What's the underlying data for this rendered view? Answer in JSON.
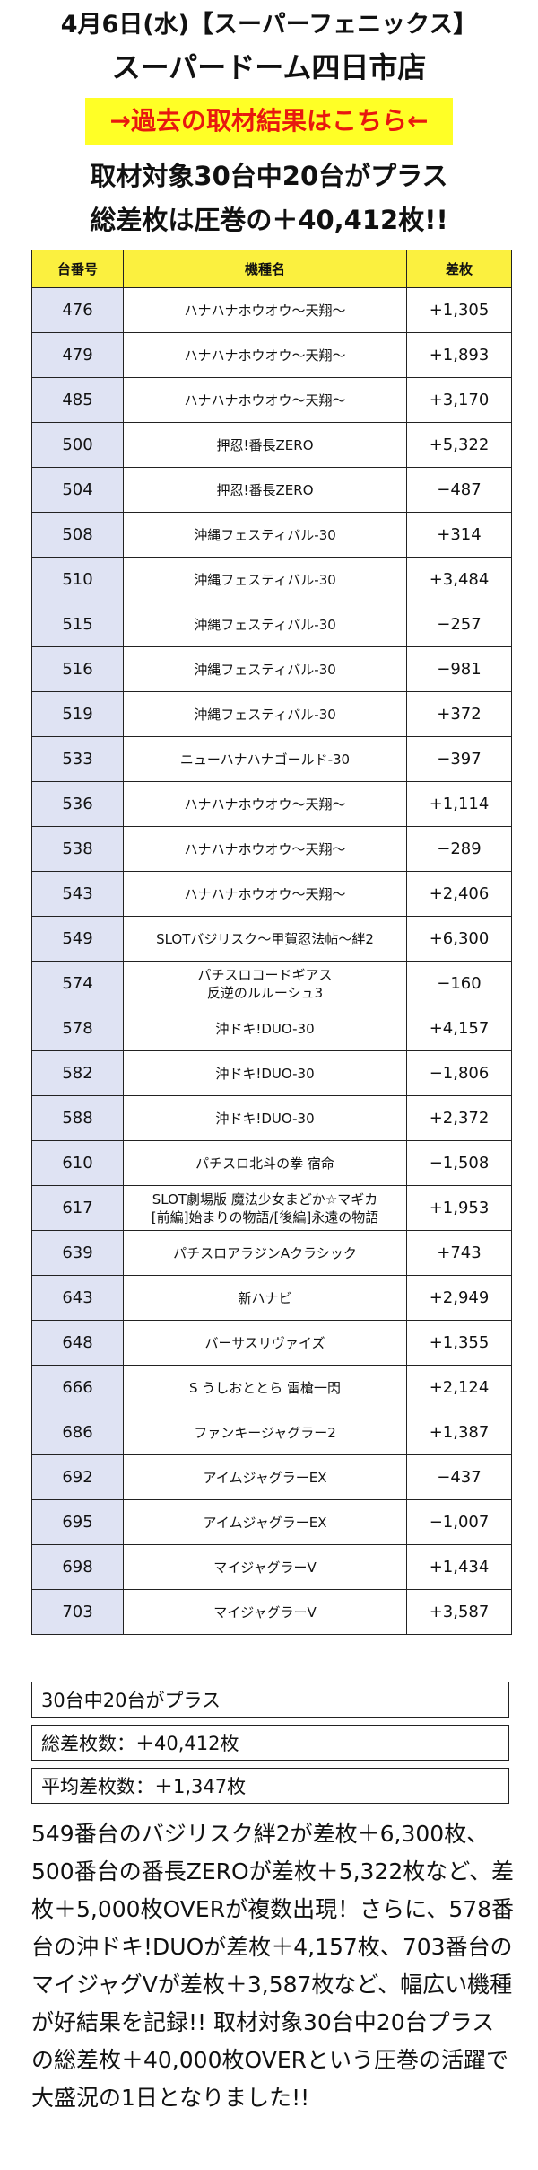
{
  "header": {
    "line1": "4月6日(水)【スーパーフェニックス】",
    "line2": "スーパードーム四日市店",
    "link_label": "→過去の取材結果はこちら←",
    "line3": "取材対象30台中20台がプラス",
    "line4": "総差枚は圧巻の＋40,412枚!!"
  },
  "table": {
    "headers": [
      "台番号",
      "機種名",
      "差枚"
    ],
    "rows": [
      {
        "num": "476",
        "name": "ハナハナホウオウ〜天翔〜",
        "diff": "+1,305"
      },
      {
        "num": "479",
        "name": "ハナハナホウオウ〜天翔〜",
        "diff": "+1,893"
      },
      {
        "num": "485",
        "name": "ハナハナホウオウ〜天翔〜",
        "diff": "+3,170"
      },
      {
        "num": "500",
        "name": "押忍!番長ZERO",
        "diff": "+5,322"
      },
      {
        "num": "504",
        "name": "押忍!番長ZERO",
        "diff": "−487"
      },
      {
        "num": "508",
        "name": "沖縄フェスティバル-30",
        "diff": "+314"
      },
      {
        "num": "510",
        "name": "沖縄フェスティバル-30",
        "diff": "+3,484"
      },
      {
        "num": "515",
        "name": "沖縄フェスティバル-30",
        "diff": "−257"
      },
      {
        "num": "516",
        "name": "沖縄フェスティバル-30",
        "diff": "−981"
      },
      {
        "num": "519",
        "name": "沖縄フェスティバル-30",
        "diff": "+372"
      },
      {
        "num": "533",
        "name": "ニューハナハナゴールド-30",
        "diff": "−397"
      },
      {
        "num": "536",
        "name": "ハナハナホウオウ〜天翔〜",
        "diff": "+1,114"
      },
      {
        "num": "538",
        "name": "ハナハナホウオウ〜天翔〜",
        "diff": "−289"
      },
      {
        "num": "543",
        "name": "ハナハナホウオウ〜天翔〜",
        "diff": "+2,406"
      },
      {
        "num": "549",
        "name": "SLOTバジリスク〜甲賀忍法帖〜絆2",
        "diff": "+6,300"
      },
      {
        "num": "574",
        "name": "パチスロコードギアス\n反逆のルルーシュ3",
        "diff": "−160"
      },
      {
        "num": "578",
        "name": "沖ドキ!DUO-30",
        "diff": "+4,157"
      },
      {
        "num": "582",
        "name": "沖ドキ!DUO-30",
        "diff": "−1,806"
      },
      {
        "num": "588",
        "name": "沖ドキ!DUO-30",
        "diff": "+2,372"
      },
      {
        "num": "610",
        "name": "パチスロ北斗の拳 宿命",
        "diff": "−1,508"
      },
      {
        "num": "617",
        "name": "SLOT劇場版 魔法少女まどか☆マギカ\n[前編]始まりの物語/[後編]永遠の物語",
        "diff": "+1,953"
      },
      {
        "num": "639",
        "name": "パチスロアラジンAクラシック",
        "diff": "+743"
      },
      {
        "num": "643",
        "name": "新ハナビ",
        "diff": "+2,949"
      },
      {
        "num": "648",
        "name": "バーサスリヴァイズ",
        "diff": "+1,355"
      },
      {
        "num": "666",
        "name": "S うしおととら 雷槍一閃",
        "diff": "+2,124"
      },
      {
        "num": "686",
        "name": "ファンキージャグラー2",
        "diff": "+1,387"
      },
      {
        "num": "692",
        "name": "アイムジャグラーEX",
        "diff": "−437"
      },
      {
        "num": "695",
        "name": "アイムジャグラーEX",
        "diff": "−1,007"
      },
      {
        "num": "698",
        "name": "マイジャグラーV",
        "diff": "+1,434"
      },
      {
        "num": "703",
        "name": "マイジャグラーV",
        "diff": "+3,587"
      }
    ]
  },
  "summary": {
    "plus": "30台中20台がプラス",
    "total": "総差枚数：＋40,412枚",
    "average": "平均差枚数：＋1,347枚"
  },
  "body_text": "549番台のバジリスク絆2が差枚＋6,300枚、500番台の番長ZEROが差枚＋5,322枚など、差枚＋5,000枚OVERが複数出現！さらに、578番台の沖ドキ!DUOが差枚＋4,157枚、703番台のマイジャグVが差枚＋3,587枚など、幅広い機種が好結果を記録!! 取材対象30台中20台プラスの総差枚＋40,000枚OVERという圧巻の活躍で大盛況の1日となりました!!",
  "colors": {
    "header_bg": "#fbf03f",
    "num_bg": "#dfe3f3",
    "link_bg": "#ffff26",
    "link_text": "#e8180f"
  }
}
